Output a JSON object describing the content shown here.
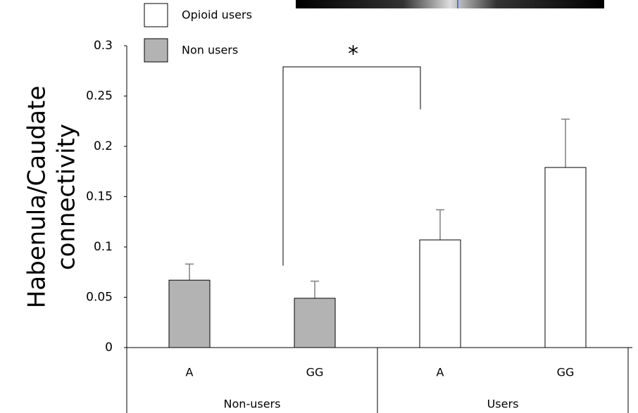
{
  "chart_data": {
    "type": "bar",
    "y_label": [
      "Habenula/Caudate",
      "connectivity"
    ],
    "categories": [
      "A",
      "GG",
      "A",
      "GG"
    ],
    "groups": [
      {
        "name": "Non-users",
        "span": [
          0,
          1
        ]
      },
      {
        "name": "Users",
        "span": [
          2,
          3
        ]
      }
    ],
    "series": [
      {
        "name": "Opioid users",
        "color": "#ffffff",
        "values": [
          null,
          null,
          0.107,
          0.179
        ],
        "errors": [
          null,
          null,
          0.03,
          0.048
        ]
      },
      {
        "name": "Non users",
        "color": "#b3b3b3",
        "values": [
          0.067,
          0.049,
          null,
          null
        ],
        "errors": [
          0.016,
          0.017,
          null,
          null
        ]
      }
    ],
    "ylim": [
      0,
      0.3
    ],
    "yticks": [
      0,
      0.05,
      0.1,
      0.15,
      0.2,
      0.25,
      0.3
    ],
    "annotation": {
      "text": "*",
      "from": 1,
      "to": 3
    },
    "grid": false
  }
}
